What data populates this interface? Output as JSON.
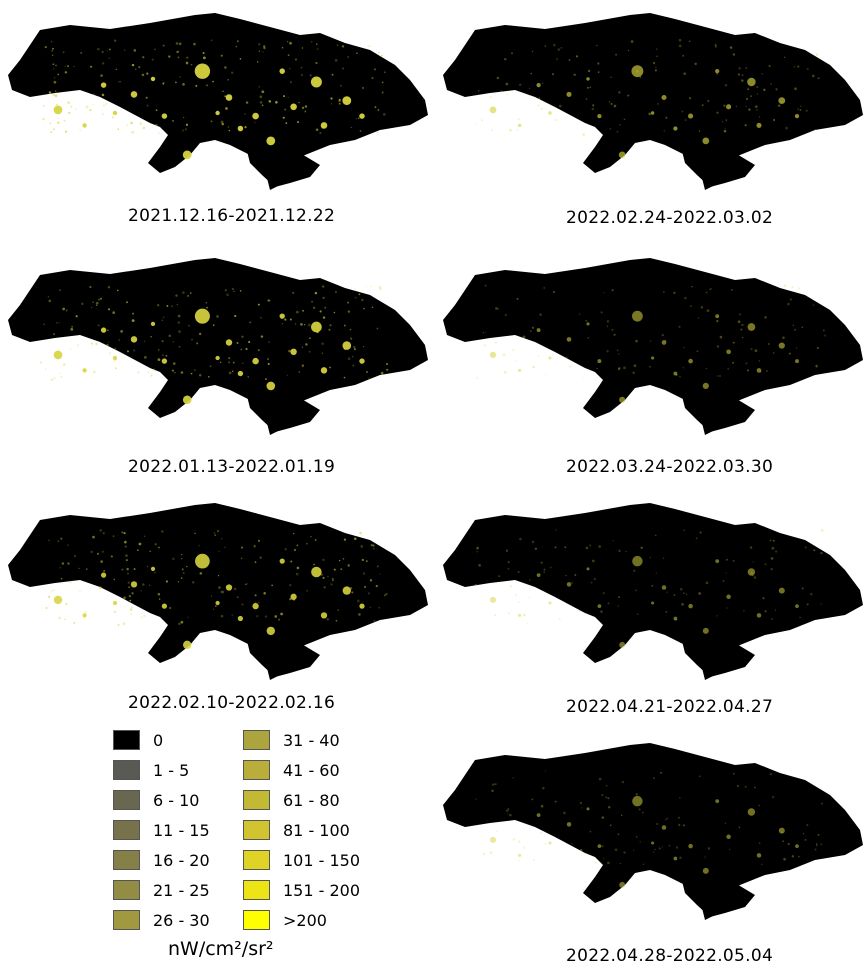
{
  "colors": {
    "land": "#000000",
    "lights": "#d8d440",
    "background": "#ffffff"
  },
  "panels": [
    {
      "caption": "2021.12.16-2021.12.22",
      "brightness": 1.0
    },
    {
      "caption": "2022.02.24-2022.03.02",
      "brightness": 0.5
    },
    {
      "caption": "2022.01.13-2022.01.19",
      "brightness": 0.95
    },
    {
      "caption": "2022.03.24-2022.03.30",
      "brightness": 0.35
    },
    {
      "caption": "2022.02.10-2022.02.16",
      "brightness": 0.9
    },
    {
      "caption": "2022.04.21-2022.04.27",
      "brightness": 0.3
    },
    {
      "caption": "2022.04.28-2022.05.04",
      "brightness": 0.3
    }
  ],
  "legend": {
    "items": [
      {
        "label": "0",
        "color": "#000000"
      },
      {
        "label": "1 - 5",
        "color": "#5a5a55"
      },
      {
        "label": "6 - 10",
        "color": "#69674f"
      },
      {
        "label": "11 - 15",
        "color": "#77724c"
      },
      {
        "label": "16 - 20",
        "color": "#857f48"
      },
      {
        "label": "21 - 25",
        "color": "#938c44"
      },
      {
        "label": "26 - 30",
        "color": "#a19940"
      },
      {
        "label": "31 - 40",
        "color": "#aca43d"
      },
      {
        "label": "41 - 60",
        "color": "#b8ae39"
      },
      {
        "label": "61 - 80",
        "color": "#c4b934"
      },
      {
        "label": "81 - 100",
        "color": "#d1c42e"
      },
      {
        "label": "101 - 150",
        "color": "#dfd325"
      },
      {
        "label": "151 - 200",
        "color": "#ede418"
      },
      {
        "label": ">200",
        "color": "#ffff00"
      }
    ],
    "units": "nW/cm²/sr²"
  }
}
